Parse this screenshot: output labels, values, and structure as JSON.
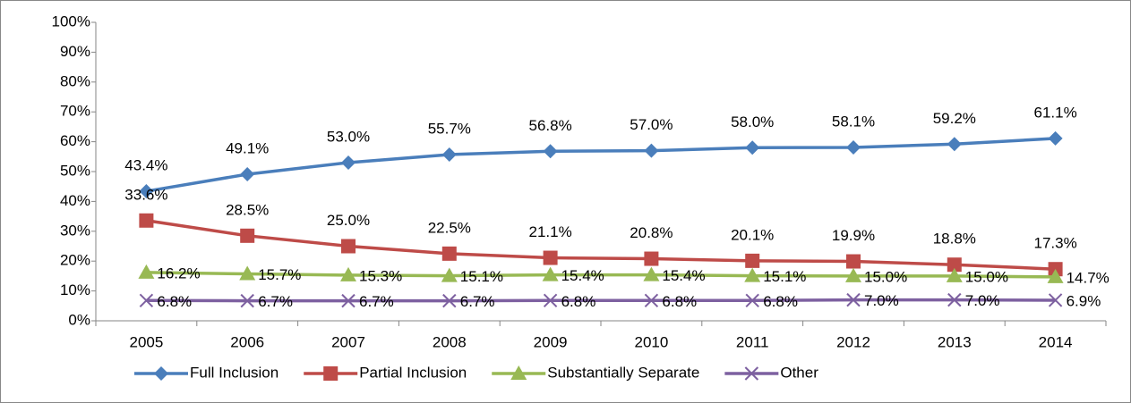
{
  "chart_data": {
    "type": "line",
    "categories": [
      "2005",
      "2006",
      "2007",
      "2008",
      "2009",
      "2010",
      "2011",
      "2012",
      "2013",
      "2014"
    ],
    "series": [
      {
        "name": "Full Inclusion",
        "color": "#4a7ebb",
        "marker": "diamond",
        "values": [
          43.4,
          49.1,
          53.0,
          55.7,
          56.8,
          57.0,
          58.0,
          58.1,
          59.2,
          61.1
        ],
        "value_labels": [
          "43.4%",
          "49.1%",
          "53.0%",
          "55.7%",
          "56.8%",
          "57.0%",
          "58.0%",
          "58.1%",
          "59.2%",
          "61.1%"
        ]
      },
      {
        "name": "Partial Inclusion",
        "color": "#be4b48",
        "marker": "square",
        "values": [
          33.6,
          28.5,
          25.0,
          22.5,
          21.1,
          20.8,
          20.1,
          19.9,
          18.8,
          17.3
        ],
        "value_labels": [
          "33.6%",
          "28.5%",
          "25.0%",
          "22.5%",
          "21.1%",
          "20.8%",
          "20.1%",
          "19.9%",
          "18.8%",
          "17.3%"
        ]
      },
      {
        "name": "Substantially Separate",
        "color": "#98b954",
        "marker": "triangle",
        "values": [
          16.2,
          15.7,
          15.3,
          15.1,
          15.4,
          15.4,
          15.1,
          15.0,
          15.0,
          14.7
        ],
        "value_labels": [
          "16.2%",
          "15.7%",
          "15.3%",
          "15.1%",
          "15.4%",
          "15.4%",
          "15.1%",
          "15.0%",
          "15.0%",
          "14.7%"
        ]
      },
      {
        "name": "Other",
        "color": "#7d60a0",
        "marker": "x",
        "values": [
          6.8,
          6.7,
          6.7,
          6.7,
          6.8,
          6.8,
          6.8,
          7.0,
          7.0,
          6.9
        ],
        "value_labels": [
          "6.8%",
          "6.7%",
          "6.7%",
          "6.7%",
          "6.8%",
          "6.8%",
          "6.8%",
          "7.0%",
          "7.0%",
          "6.9%"
        ]
      }
    ],
    "ylim": [
      0,
      100
    ],
    "yticks": [
      {
        "value": 0,
        "label": "0%"
      },
      {
        "value": 10,
        "label": "10%"
      },
      {
        "value": 20,
        "label": "20%"
      },
      {
        "value": 30,
        "label": "30%"
      },
      {
        "value": 40,
        "label": "40%"
      },
      {
        "value": 50,
        "label": "50%"
      },
      {
        "value": 60,
        "label": "60%"
      },
      {
        "value": 70,
        "label": "70%"
      },
      {
        "value": 80,
        "label": "80%"
      },
      {
        "value": 90,
        "label": "90%"
      },
      {
        "value": 100,
        "label": "100%"
      }
    ],
    "legend": "bottom"
  }
}
